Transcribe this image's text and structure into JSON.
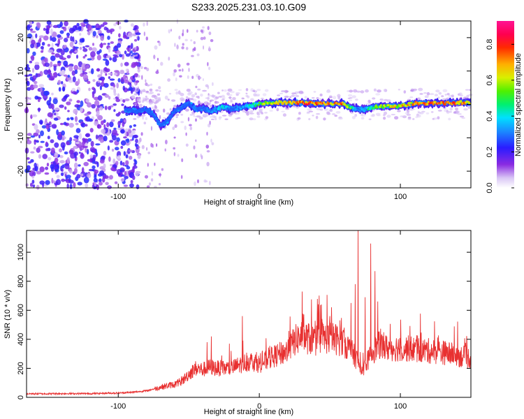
{
  "chart_data": [
    {
      "type": "heatmap",
      "title": "S233.2025.231.03.10.G09",
      "xlabel": "Height of straight line (km)",
      "ylabel": "Frequency (Hz)",
      "xlim": [
        -165,
        150
      ],
      "ylim": [
        -25,
        25
      ],
      "xticks": [
        -100,
        0,
        100
      ],
      "yticks": [
        -20,
        -10,
        0,
        10,
        20
      ],
      "colorbar": {
        "label": "Normalized spectral amplitude",
        "range": [
          0,
          0.93
        ],
        "ticks": [
          0.0,
          0.2,
          0.4,
          0.6,
          0.8
        ],
        "colormap": "rainbow (white-violet-blue-cyan-green-yellow-red-magenta)"
      },
      "signal_trace": {
        "description": "frequency of the spectral line vs. height (approximate)",
        "x": [
          -95,
          -85,
          -80,
          -75,
          -70,
          -65,
          -60,
          -55,
          -50,
          -45,
          -40,
          -35,
          -30,
          -25,
          -20,
          -15,
          -10,
          -5,
          0,
          10,
          20,
          30,
          40,
          50,
          60,
          65,
          70,
          75,
          80,
          90,
          100,
          110,
          120,
          130,
          140,
          150
        ],
        "frequency": [
          -1.5,
          -2,
          -1.5,
          -3,
          -6.5,
          -5,
          -2,
          -1,
          0.5,
          -1.5,
          -1,
          -2,
          -1.5,
          -0.5,
          -1.5,
          -1,
          -0.8,
          -0.3,
          0.3,
          0.5,
          0.5,
          0.5,
          0.3,
          0.2,
          0.2,
          -1,
          -1.5,
          -1.5,
          -0.8,
          -0.5,
          -0.5,
          0.3,
          0.3,
          0.4,
          0.5,
          0.5
        ],
        "amplitude": [
          0.1,
          0.12,
          0.12,
          0.15,
          0.3,
          0.25,
          0.15,
          0.25,
          0.3,
          0.35,
          0.3,
          0.35,
          0.4,
          0.45,
          0.3,
          0.35,
          0.4,
          0.5,
          0.6,
          0.7,
          0.8,
          0.85,
          0.9,
          0.85,
          0.8,
          0.6,
          0.3,
          0.45,
          0.55,
          0.7,
          0.75,
          0.8,
          0.85,
          0.85,
          0.85,
          0.8
        ]
      }
    },
    {
      "type": "line",
      "title": "",
      "xlabel": "Height of straight line (km)",
      "ylabel": "SNR (10 * v/v)",
      "xlim": [
        -165,
        150
      ],
      "ylim": [
        0,
        1150
      ],
      "xticks": [
        -100,
        0,
        100
      ],
      "yticks": [
        0,
        200,
        400,
        600,
        800,
        1000
      ],
      "color": "#e83030",
      "series": [
        {
          "name": "SNR",
          "x": [
            -165,
            -150,
            -140,
            -120,
            -100,
            -90,
            -80,
            -70,
            -60,
            -55,
            -50,
            -45,
            -40,
            -35,
            -30,
            -25,
            -20,
            -15,
            -10,
            -5,
            0,
            10,
            20,
            25,
            30,
            40,
            45,
            50,
            55,
            60,
            65,
            70,
            72,
            75,
            80,
            85,
            90,
            100,
            110,
            120,
            130,
            140,
            150
          ],
          "y": [
            25,
            25,
            26,
            26,
            30,
            35,
            45,
            70,
            90,
            110,
            160,
            200,
            190,
            210,
            200,
            200,
            200,
            220,
            240,
            250,
            230,
            280,
            320,
            390,
            420,
            390,
            410,
            410,
            400,
            380,
            320,
            250,
            180,
            220,
            310,
            360,
            340,
            340,
            330,
            320,
            310,
            290,
            270
          ]
        }
      ],
      "spikes": [
        {
          "x": 44,
          "y": 640
        },
        {
          "x": 50,
          "y": 560
        },
        {
          "x": 65,
          "y": 650
        },
        {
          "x": 68,
          "y": 780
        },
        {
          "x": 70,
          "y": 1150
        },
        {
          "x": 75,
          "y": 690
        },
        {
          "x": 79,
          "y": 1060
        },
        {
          "x": 82,
          "y": 870
        },
        {
          "x": 84,
          "y": 660
        },
        {
          "x": -12,
          "y": 560
        },
        {
          "x": -34,
          "y": 420
        },
        {
          "x": -37,
          "y": 380
        }
      ]
    }
  ]
}
